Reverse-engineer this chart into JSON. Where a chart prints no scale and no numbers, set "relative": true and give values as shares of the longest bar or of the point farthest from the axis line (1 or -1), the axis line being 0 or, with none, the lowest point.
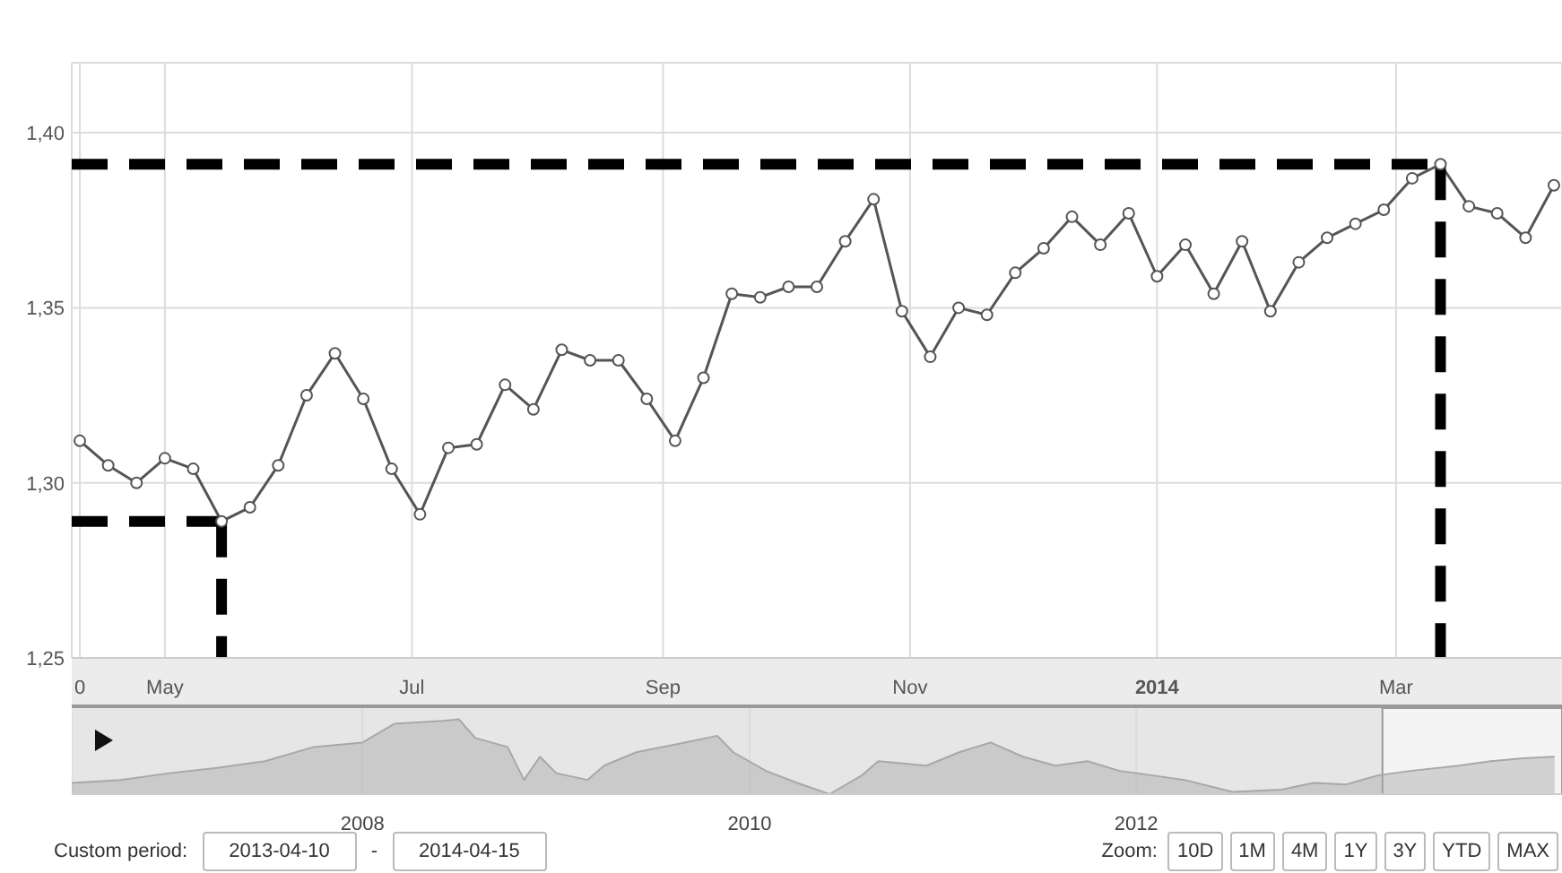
{
  "chart_data": [
    {
      "type": "line",
      "x": [
        "2013-04-10",
        "2013-04-17",
        "2013-04-24",
        "2013-05-01",
        "2013-05-08",
        "2013-05-15",
        "2013-05-22",
        "2013-05-29",
        "2013-06-05",
        "2013-06-12",
        "2013-06-19",
        "2013-06-26",
        "2013-07-03",
        "2013-07-10",
        "2013-07-17",
        "2013-07-24",
        "2013-07-31",
        "2013-08-07",
        "2013-08-14",
        "2013-08-21",
        "2013-08-28",
        "2013-09-04",
        "2013-09-11",
        "2013-09-18",
        "2013-09-25",
        "2013-10-02",
        "2013-10-09",
        "2013-10-16",
        "2013-10-23",
        "2013-10-30",
        "2013-11-06",
        "2013-11-13",
        "2013-11-20",
        "2013-11-27",
        "2013-12-04",
        "2013-12-11",
        "2013-12-18",
        "2013-12-25",
        "2014-01-01",
        "2014-01-08",
        "2014-01-15",
        "2014-01-22",
        "2014-01-29",
        "2014-02-05",
        "2014-02-12",
        "2014-02-19",
        "2014-02-26",
        "2014-03-05",
        "2014-03-12",
        "2014-03-19",
        "2014-03-26",
        "2014-04-02",
        "2014-04-09"
      ],
      "series": [
        {
          "color": "#555555",
          "values": [
            1.312,
            1.305,
            1.3,
            1.307,
            1.304,
            1.289,
            1.293,
            1.305,
            1.325,
            1.337,
            1.324,
            1.304,
            1.291,
            1.31,
            1.311,
            1.328,
            1.321,
            1.338,
            1.335,
            1.335,
            1.324,
            1.312,
            1.33,
            1.354,
            1.353,
            1.356,
            1.356,
            1.369,
            1.381,
            1.349,
            1.336,
            1.35,
            1.348,
            1.36,
            1.367,
            1.376,
            1.368,
            1.377,
            1.359,
            1.368,
            1.354,
            1.369,
            1.349,
            1.363,
            1.37,
            1.374,
            1.378,
            1.387,
            1.391,
            1.379,
            1.377,
            1.37,
            1.385
          ]
        }
      ],
      "xlim": [
        "2013-04-08",
        "2014-04-11"
      ],
      "xticks": [
        {
          "value": "2013-04-10",
          "label": "0"
        },
        {
          "value": "2013-05-01",
          "label": "May"
        },
        {
          "value": "2013-07-01",
          "label": "Jul"
        },
        {
          "value": "2013-09-01",
          "label": "Sep"
        },
        {
          "value": "2013-11-01",
          "label": "Nov"
        },
        {
          "value": "2014-01-01",
          "label": "2014"
        },
        {
          "value": "2014-03-01",
          "label": "Mar"
        }
      ],
      "ylim": [
        1.25,
        1.42
      ],
      "yticks": [
        {
          "value": 1.25,
          "label": "1,25"
        },
        {
          "value": 1.3,
          "label": "1,30"
        },
        {
          "value": 1.35,
          "label": "1,35"
        },
        {
          "value": 1.4,
          "label": "1,40"
        }
      ],
      "grid": true,
      "marker": "circle",
      "ref_lines": [
        {
          "axis": "y",
          "value": 1.391,
          "color": "#000000",
          "line_style": "dashed"
        },
        {
          "axis": "x",
          "value": "2014-03-12",
          "color": "#000000",
          "line_style": "dashed"
        },
        {
          "axis": "y",
          "value": 1.289,
          "color": "#000000",
          "line_style": "dashed"
        },
        {
          "axis": "x",
          "value": "2013-05-15",
          "color": "#000000",
          "line_style": "dashed"
        }
      ],
      "annotations": [
        "Custom period:",
        "2013-04-10",
        "-",
        "2014-04-15",
        "Zoom:",
        "10D",
        "1M",
        "4M",
        "1Y",
        "3Y",
        "YTD",
        "MAX"
      ]
    },
    {
      "type": "area",
      "relative": true,
      "x": [
        "2006-07",
        "2006-10",
        "2007-01",
        "2007-04",
        "2007-07",
        "2007-10",
        "2008-01",
        "2008-03",
        "2008-06",
        "2008-07",
        "2008-08",
        "2008-10",
        "2008-11",
        "2008-12",
        "2009-01",
        "2009-03",
        "2009-04",
        "2009-06",
        "2009-09",
        "2009-11",
        "2009-12",
        "2010-02",
        "2010-04",
        "2010-06",
        "2010-08",
        "2010-09",
        "2010-12",
        "2011-02",
        "2011-04",
        "2011-06",
        "2011-08",
        "2011-10",
        "2011-12",
        "2012-02",
        "2012-04",
        "2012-07",
        "2012-10",
        "2012-12",
        "2013-02",
        "2013-04",
        "2013-06",
        "2013-09",
        "2013-11",
        "2014-01",
        "2014-03"
      ],
      "series": [
        {
          "color": "#a8a8a8",
          "values": [
            0.15,
            0.19,
            0.28,
            0.35,
            0.44,
            0.63,
            0.69,
            0.94,
            0.98,
            1,
            0.75,
            0.63,
            0.19,
            0.5,
            0.28,
            0.19,
            0.38,
            0.56,
            0.69,
            0.78,
            0.56,
            0.31,
            0.15,
            0,
            0.25,
            0.44,
            0.38,
            0.56,
            0.69,
            0.5,
            0.38,
            0.44,
            0.31,
            0.25,
            0.19,
            0.03,
            0.06,
            0.15,
            0.13,
            0.25,
            0.31,
            0.38,
            0.44,
            0.48,
            0.5
          ]
        }
      ],
      "xlim": [
        "2006-07-01",
        "2014-03-15"
      ],
      "xticks": [
        {
          "value": "2008-01-01",
          "label": "2008"
        },
        {
          "value": "2010-01-01",
          "label": "2010"
        },
        {
          "value": "2012-01-01",
          "label": "2012"
        }
      ],
      "tick_labels": "x",
      "grid": "x",
      "bands": [
        {
          "axis": "x",
          "from": "2013-04-10",
          "to": "2014-03-15",
          "color": "#ffffff"
        }
      ]
    }
  ]
}
